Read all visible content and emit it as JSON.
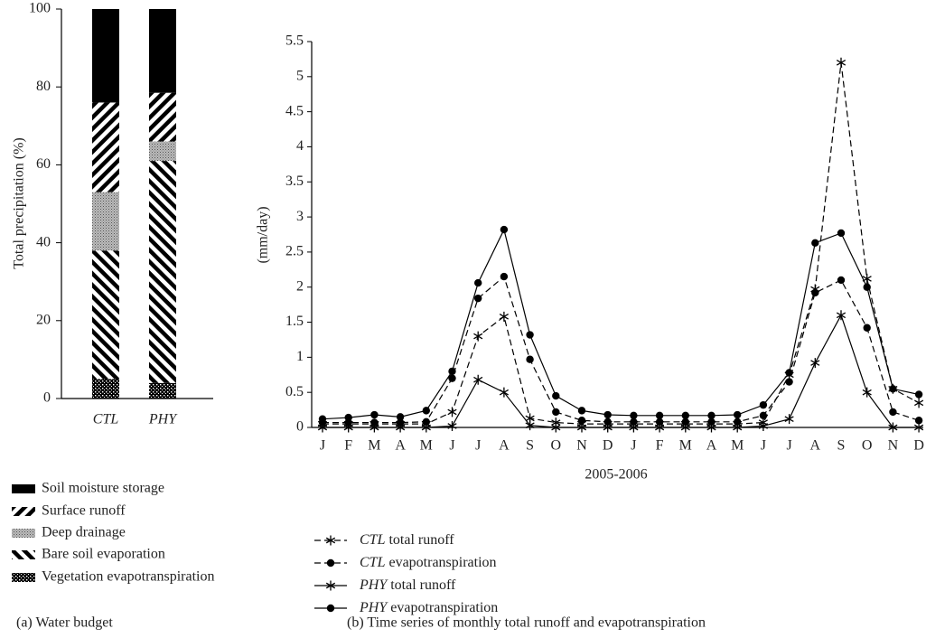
{
  "chart_data": [
    {
      "type": "stacked-bar",
      "caption": "(a) Water budget",
      "ylabel": "Total precipitation (%)",
      "categories": [
        "CTL",
        "PHY"
      ],
      "series": [
        {
          "name": "Vegetation evapotranspiration",
          "color": "#000000",
          "pattern": "checker",
          "values": [
            5,
            4
          ]
        },
        {
          "name": "Bare soil evaporation",
          "color": "#000000",
          "pattern": "hatch-back",
          "values": [
            33,
            57
          ]
        },
        {
          "name": "Deep drainage",
          "color": "#000000",
          "pattern": "stipple",
          "values": [
            15,
            5
          ]
        },
        {
          "name": "Surface runoff",
          "color": "#000000",
          "pattern": "hatch-forward",
          "values": [
            23,
            12.5
          ]
        },
        {
          "name": "Soil moisture storage",
          "color": "#000000",
          "pattern": "solid",
          "values": [
            24,
            21.5
          ]
        }
      ],
      "ylim": [
        0,
        100
      ],
      "yticks": [
        0,
        20,
        40,
        60,
        80,
        100
      ]
    },
    {
      "type": "line",
      "caption": "(b) Time series of monthly total runoff and evapotranspiration",
      "xlabel": "2005-2006",
      "ylabel": "(mm/day)",
      "categories": [
        "J",
        "F",
        "M",
        "A",
        "M",
        "J",
        "J",
        "A",
        "S",
        "O",
        "N",
        "D",
        "J",
        "F",
        "M",
        "A",
        "M",
        "J",
        "J",
        "A",
        "S",
        "O",
        "N",
        "D"
      ],
      "series": [
        {
          "name": "CTL total runoff",
          "color": "#000000",
          "dash": true,
          "marker": "star",
          "values": [
            0.05,
            0.05,
            0.05,
            0.05,
            0.05,
            0.22,
            1.3,
            1.58,
            0.13,
            0.07,
            0.05,
            0.05,
            0.05,
            0.05,
            0.05,
            0.05,
            0.05,
            0.07,
            0.75,
            1.97,
            5.2,
            2.12,
            0.55,
            0.35
          ]
        },
        {
          "name": "CTL evapotranspiration",
          "color": "#000000",
          "dash": true,
          "marker": "dot",
          "values": [
            0.07,
            0.07,
            0.07,
            0.07,
            0.08,
            0.7,
            1.84,
            2.15,
            0.97,
            0.22,
            0.1,
            0.08,
            0.08,
            0.08,
            0.08,
            0.08,
            0.08,
            0.17,
            0.65,
            1.92,
            2.1,
            1.42,
            0.22,
            0.1
          ]
        },
        {
          "name": "PHY total runoff",
          "color": "#000000",
          "dash": false,
          "marker": "star",
          "values": [
            0,
            0,
            0,
            0,
            0,
            0.02,
            0.68,
            0.5,
            0.03,
            0,
            0,
            0,
            0,
            0,
            0,
            0,
            0,
            0.02,
            0.12,
            0.92,
            1.6,
            0.5,
            0,
            0
          ]
        },
        {
          "name": "PHY evapotranspiration",
          "color": "#000000",
          "dash": false,
          "marker": "dot",
          "values": [
            0.12,
            0.14,
            0.18,
            0.15,
            0.24,
            0.8,
            2.06,
            2.82,
            1.32,
            0.45,
            0.24,
            0.18,
            0.17,
            0.17,
            0.17,
            0.17,
            0.18,
            0.32,
            0.78,
            2.63,
            2.77,
            2.0,
            0.55,
            0.47
          ]
        }
      ],
      "ylim": [
        0,
        5.5
      ],
      "yticks": [
        0,
        0.5,
        1,
        1.5,
        2,
        2.5,
        3,
        3.5,
        4,
        4.5,
        5,
        5.5
      ]
    }
  ]
}
